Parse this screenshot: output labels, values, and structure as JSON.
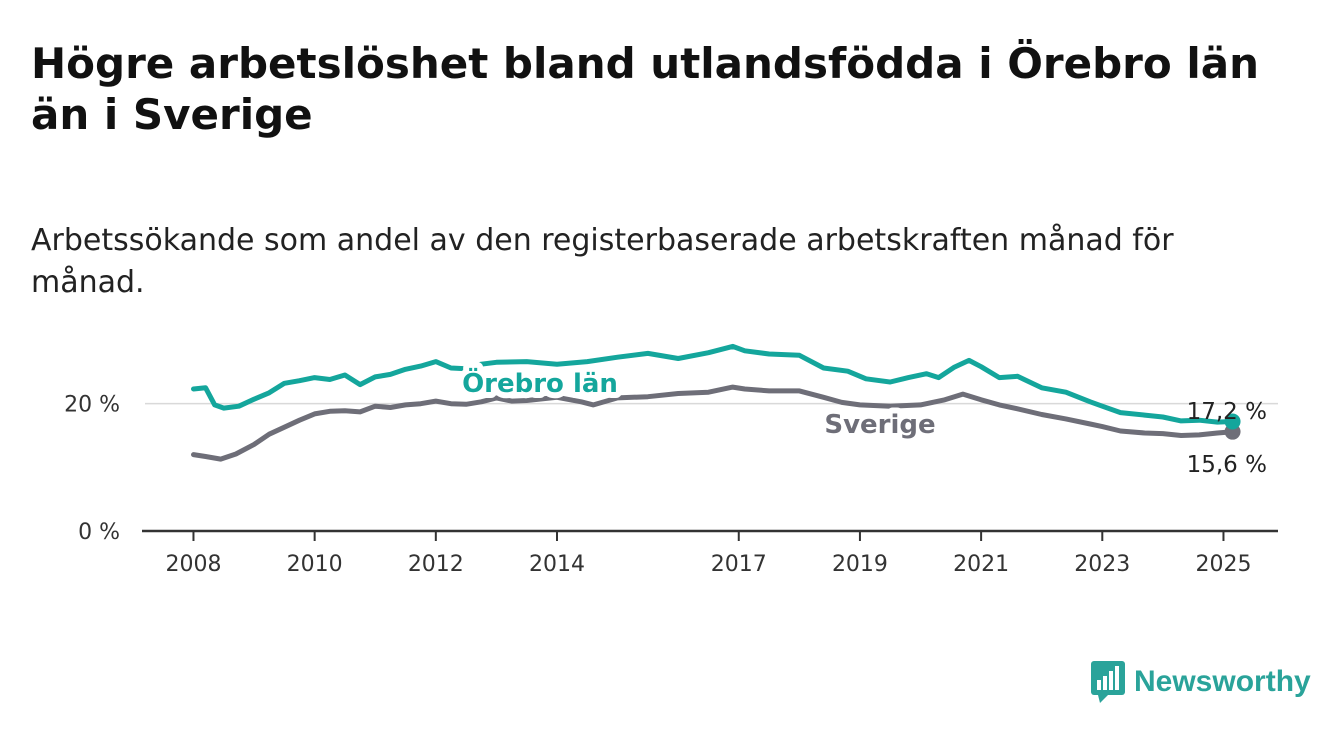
{
  "title": "Högre arbetslöshet bland utlandsfödda i Örebro län än i Sverige",
  "subtitle": "Arbetssökande som andel av den registerbaserade arbetskraften månad för månad.",
  "brand": {
    "name": "Newsworthy",
    "logo_icon": "bar-chart-speech-icon"
  },
  "chart_data": {
    "type": "line",
    "x_unit": "year",
    "xlim": [
      2007.2,
      2025.9
    ],
    "ylim": [
      0,
      30
    ],
    "y_ticks": [
      0,
      20
    ],
    "y_tick_labels": [
      "0 %",
      "20 %"
    ],
    "x_ticks": [
      2008,
      2010,
      2012,
      2014,
      2017,
      2019,
      2021,
      2023,
      2025
    ],
    "x_tick_labels": [
      "2008",
      "2010",
      "2012",
      "2014",
      "2017",
      "2019",
      "2021",
      "2023",
      "2025"
    ],
    "grid": "horizontal line at 20 %",
    "series": [
      {
        "name": "Örebro län",
        "color": "#14a69c",
        "end_label": "17,2 %",
        "x": [
          2008.0,
          2008.2,
          2008.35,
          2008.5,
          2008.75,
          2009.0,
          2009.25,
          2009.5,
          2009.75,
          2010.0,
          2010.25,
          2010.5,
          2010.75,
          2011.0,
          2011.25,
          2011.5,
          2011.75,
          2012.0,
          2012.25,
          2012.5,
          2012.75,
          2013.0,
          2013.5,
          2014.0,
          2014.5,
          2015.0,
          2015.5,
          2016.0,
          2016.5,
          2016.9,
          2017.1,
          2017.5,
          2018.0,
          2018.4,
          2018.8,
          2019.1,
          2019.5,
          2019.8,
          2020.1,
          2020.3,
          2020.55,
          2020.8,
          2021.0,
          2021.3,
          2021.6,
          2022.0,
          2022.4,
          2022.8,
          2023.0,
          2023.3,
          2023.7,
          2024.0,
          2024.3,
          2024.6,
          2024.9,
          2025.15
        ],
        "values": [
          22.3,
          22.5,
          19.8,
          19.3,
          19.6,
          20.7,
          21.7,
          23.2,
          23.6,
          24.1,
          23.8,
          24.5,
          23.0,
          24.2,
          24.6,
          25.4,
          25.9,
          26.6,
          25.6,
          25.5,
          26.2,
          26.5,
          26.6,
          26.2,
          26.6,
          27.3,
          27.9,
          27.1,
          28.0,
          29.0,
          28.3,
          27.8,
          27.6,
          25.6,
          25.1,
          23.9,
          23.4,
          24.1,
          24.7,
          24.1,
          25.7,
          26.8,
          25.8,
          24.1,
          24.3,
          22.5,
          21.8,
          20.3,
          19.6,
          18.6,
          18.2,
          17.9,
          17.3,
          17.4,
          17.1,
          17.2
        ]
      },
      {
        "name": "Sverige",
        "color": "#6e6e78",
        "end_label": "15,6 %",
        "x": [
          2008.0,
          2008.2,
          2008.45,
          2008.7,
          2009.0,
          2009.25,
          2009.5,
          2009.75,
          2010.0,
          2010.25,
          2010.5,
          2010.75,
          2011.0,
          2011.25,
          2011.5,
          2011.75,
          2012.0,
          2012.25,
          2012.5,
          2012.75,
          2013.0,
          2013.25,
          2013.5,
          2014.0,
          2014.4,
          2014.6,
          2015.0,
          2015.5,
          2016.0,
          2016.5,
          2016.9,
          2017.1,
          2017.5,
          2018.0,
          2018.4,
          2018.7,
          2019.0,
          2019.5,
          2020.0,
          2020.4,
          2020.7,
          2021.0,
          2021.3,
          2021.6,
          2022.0,
          2022.4,
          2022.8,
          2023.0,
          2023.3,
          2023.7,
          2024.0,
          2024.3,
          2024.6,
          2024.9,
          2025.15
        ],
        "values": [
          12.0,
          11.7,
          11.3,
          12.1,
          13.6,
          15.2,
          16.3,
          17.4,
          18.4,
          18.8,
          18.9,
          18.7,
          19.6,
          19.4,
          19.8,
          20.0,
          20.4,
          20.0,
          19.9,
          20.3,
          20.9,
          20.4,
          20.5,
          21.0,
          20.3,
          19.8,
          20.9,
          21.1,
          21.6,
          21.8,
          22.6,
          22.3,
          22.0,
          22.0,
          21.0,
          20.2,
          19.8,
          19.6,
          19.8,
          20.6,
          21.5,
          20.6,
          19.8,
          19.2,
          18.3,
          17.6,
          16.8,
          16.4,
          15.7,
          15.4,
          15.3,
          15.0,
          15.1,
          15.4,
          15.6
        ]
      }
    ]
  }
}
